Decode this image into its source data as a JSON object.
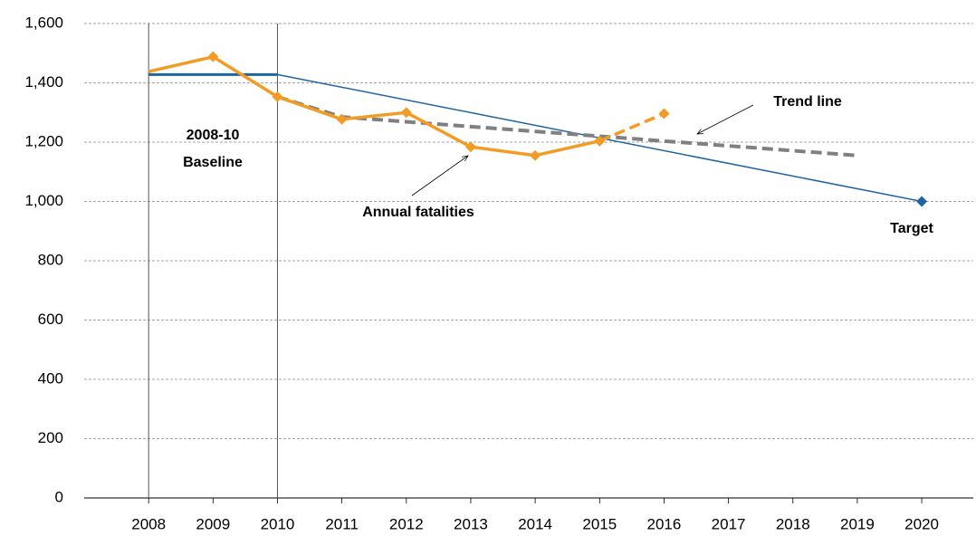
{
  "chart_data": {
    "type": "line",
    "xlim": [
      2007,
      2020.8
    ],
    "xticks": [
      2008,
      2009,
      2010,
      2011,
      2012,
      2013,
      2014,
      2015,
      2016,
      2017,
      2018,
      2019,
      2020
    ],
    "ylim": [
      0,
      1600
    ],
    "yticks": [
      0,
      {
        "value": 200,
        "label": "200"
      },
      {
        "value": 400,
        "label": "400"
      },
      {
        "value": 600,
        "label": "600"
      },
      {
        "value": 800,
        "label": "800"
      },
      {
        "value": 1000,
        "label": "1,000"
      },
      {
        "value": 1200,
        "label": "1,200"
      },
      {
        "value": 1400,
        "label": "1,400"
      },
      {
        "value": 1600,
        "label": "1,600"
      }
    ],
    "grid": true,
    "series": [
      {
        "color": "#1f64a0",
        "width": 3,
        "dash": false,
        "marker": false,
        "x": [
          2008,
          2010
        ],
        "values": [
          1428,
          1428
        ]
      },
      {
        "color": "#1f64a0",
        "width": 1.5,
        "dash": false,
        "marker": false,
        "x": [
          2010,
          2020
        ],
        "values": [
          1428,
          1000
        ]
      },
      {
        "color": "#1f64a0",
        "width": 0,
        "dash": false,
        "marker": true,
        "x": [
          2020
        ],
        "values": [
          1000
        ]
      },
      {
        "color": "#808080",
        "width": 4,
        "dash": true,
        "marker": false,
        "x": [
          2010,
          2011,
          2019
        ],
        "values": [
          1353,
          1285,
          1155
        ]
      },
      {
        "color": "#f39c25",
        "width": 3.5,
        "dash": false,
        "marker": true,
        "x": [
          2008,
          2009,
          2010,
          2011,
          2012,
          2013,
          2014,
          2015
        ],
        "values": [
          1438,
          1488,
          1353,
          1277,
          1300,
          1184,
          1155,
          1204
        ]
      },
      {
        "color": "#f39c25",
        "width": 3.5,
        "dash": true,
        "marker": true,
        "x": [
          2015,
          2016
        ],
        "values": [
          1204,
          1296
        ]
      }
    ],
    "annotations": [
      "2008-10",
      "Baseline",
      "Trend line",
      "Annual fatalities",
      "Target"
    ]
  }
}
